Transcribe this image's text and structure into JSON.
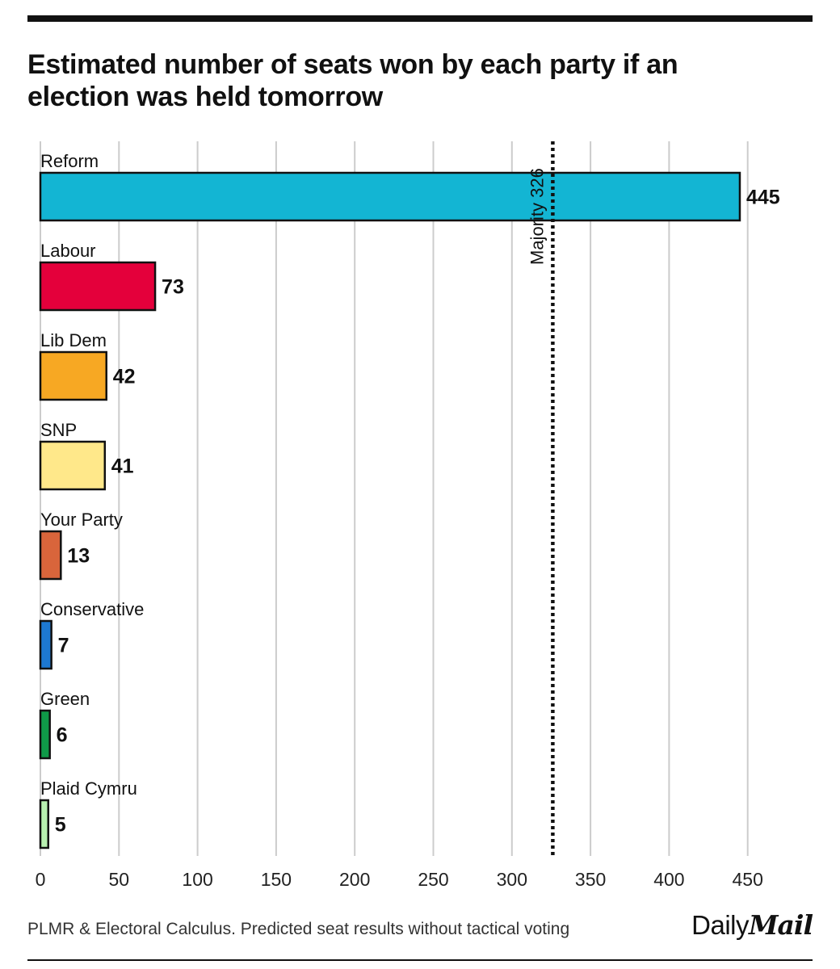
{
  "chart_data": {
    "type": "bar",
    "orientation": "horizontal",
    "title": "Estimated number of seats won by each party if an election was held tomorrow",
    "categories": [
      "Reform",
      "Labour",
      "Lib Dem",
      "SNP",
      "Your Party",
      "Conservative",
      "Green",
      "Plaid Cymru"
    ],
    "values": [
      445,
      73,
      42,
      41,
      13,
      7,
      6,
      5
    ],
    "colors": [
      "#13b5d3",
      "#e4003b",
      "#f7a823",
      "#ffe88a",
      "#d9653b",
      "#1d78d1",
      "#0f9a48",
      "#b8f0b0"
    ],
    "xlim": [
      0,
      450
    ],
    "xticks": [
      0,
      50,
      100,
      150,
      200,
      250,
      300,
      350,
      400,
      450
    ],
    "xtick_labels": [
      "0",
      "50",
      "100",
      "150",
      "200",
      "250",
      "300",
      "350",
      "400",
      "450"
    ],
    "grid": "vertical",
    "reference_line": {
      "value": 326,
      "label": "Majority 326",
      "style": "dotted"
    }
  },
  "footer": {
    "source": "PLMR & Electoral Calculus. Predicted seat results without tactical voting",
    "logo_part1": "Daily",
    "logo_part2": "Mail"
  }
}
